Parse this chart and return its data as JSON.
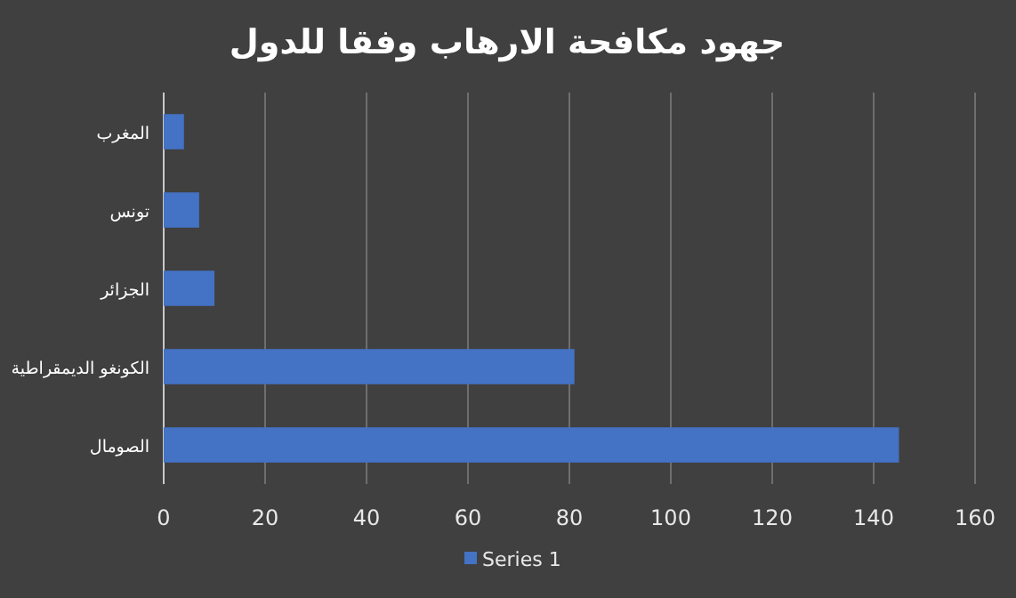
{
  "chart_data": {
    "type": "bar",
    "orientation": "horizontal",
    "title": "جهود مكافحة الارهاب وفقا للدول",
    "categories": [
      "المغرب",
      "تونس",
      "الجزائر",
      "الكونغو الديمقراطية",
      "الصومال"
    ],
    "series": [
      {
        "name": "Series 1",
        "color": "#4472c4",
        "values": [
          4,
          7,
          10,
          81,
          145
        ]
      }
    ],
    "xlim": [
      0,
      160
    ],
    "xticks": [
      0,
      20,
      40,
      60,
      80,
      100,
      120,
      140,
      160
    ],
    "grid": "x",
    "legend": "bottom"
  }
}
